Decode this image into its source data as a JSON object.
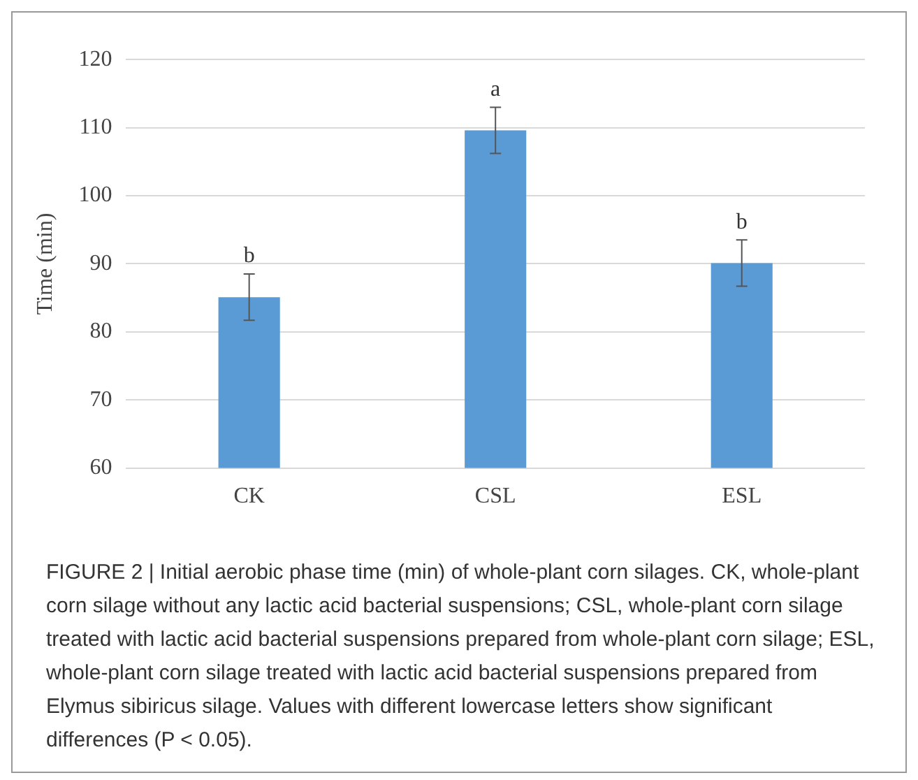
{
  "chart_data": {
    "type": "bar",
    "ylabel": "Time (min)",
    "categories": [
      "CK",
      "CSL",
      "ESL"
    ],
    "series": [
      {
        "color": "#5b9bd5",
        "values": [
          85.1,
          109.6,
          90.1
        ],
        "errors": [
          3.4,
          3.4,
          3.4
        ]
      }
    ],
    "ylim": [
      60,
      120
    ],
    "yticks": [
      60,
      70,
      80,
      90,
      100,
      110,
      120
    ],
    "grid": "y",
    "legend": false,
    "annotations": [
      {
        "text": "b",
        "x": "CK",
        "y": 88.6
      },
      {
        "text": "a",
        "x": "CSL",
        "y": 113.1
      },
      {
        "text": "b",
        "x": "ESL",
        "y": 93.6
      },
      "FIGURE 2 | Initial aerobic phase time (min) of whole-plant corn silages. CK, whole-plant corn silage without any lactic acid bacterial suspensions; CSL, whole-plant corn silage treated with lactic acid bacterial suspensions prepared from whole-plant corn silage; ESL, whole-plant corn silage treated with lactic acid bacterial suspensions prepared from Elymus sibiricus silage. Values with different lowercase letters show significant differences (P < 0.05)."
    ]
  }
}
